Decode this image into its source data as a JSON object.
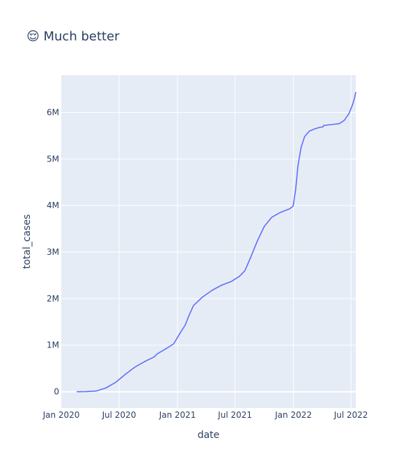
{
  "chart_data": {
    "type": "line",
    "title": "😌 Much better",
    "xlabel": "date",
    "ylabel": "total_cases",
    "grid": true,
    "legend": "none",
    "colors": {
      "background": "#ffffff",
      "plot_background": "#e5ecf6",
      "gridline": "#ffffff",
      "line": "#636efa",
      "text": "#2a3f5f"
    },
    "xlim": [
      "2020-01-01",
      "2022-07-16"
    ],
    "ylim": [
      -350000,
      6800000
    ],
    "x_ticks": [
      {
        "value": "2020-01-01",
        "label": "Jan 2020"
      },
      {
        "value": "2020-07-01",
        "label": "Jul 2020"
      },
      {
        "value": "2021-01-01",
        "label": "Jan 2021"
      },
      {
        "value": "2021-07-01",
        "label": "Jul 2021"
      },
      {
        "value": "2022-01-01",
        "label": "Jan 2022"
      },
      {
        "value": "2022-07-01",
        "label": "Jul 2022"
      }
    ],
    "y_ticks": [
      {
        "value": 0,
        "label": "0"
      },
      {
        "value": 1000000,
        "label": "1M"
      },
      {
        "value": 2000000,
        "label": "2M"
      },
      {
        "value": 3000000,
        "label": "3M"
      },
      {
        "value": 4000000,
        "label": "4M"
      },
      {
        "value": 5000000,
        "label": "5M"
      },
      {
        "value": 6000000,
        "label": "6M"
      }
    ],
    "series": [
      {
        "x": [
          "2020-02-20",
          "2020-03-20",
          "2020-04-20",
          "2020-05-20",
          "2020-06-20",
          "2020-07-20",
          "2020-08-20",
          "2020-09-20",
          "2020-10-20",
          "2020-10-28",
          "2020-11-25",
          "2020-12-20",
          "2021-01-10",
          "2021-01-25",
          "2021-02-05",
          "2021-02-20",
          "2021-03-20",
          "2021-04-20",
          "2021-05-20",
          "2021-06-20",
          "2021-07-01",
          "2021-07-15",
          "2021-08-01",
          "2021-08-20",
          "2021-09-10",
          "2021-10-01",
          "2021-10-25",
          "2021-11-20",
          "2021-12-20",
          "2021-12-31",
          "2022-01-08",
          "2022-01-15",
          "2022-01-25",
          "2022-02-05",
          "2022-02-20",
          "2022-03-10",
          "2022-03-25",
          "2022-04-04",
          "2022-04-06",
          "2022-05-01",
          "2022-05-25",
          "2022-06-10",
          "2022-06-25",
          "2022-07-05",
          "2022-07-12",
          "2022-07-16"
        ],
        "values": [
          0,
          3000,
          15000,
          80000,
          200000,
          370000,
          530000,
          650000,
          750000,
          810000,
          920000,
          1030000,
          1270000,
          1430000,
          1620000,
          1850000,
          2030000,
          2180000,
          2290000,
          2370000,
          2420000,
          2480000,
          2600000,
          2900000,
          3250000,
          3550000,
          3750000,
          3850000,
          3930000,
          3990000,
          4350000,
          4850000,
          5250000,
          5480000,
          5600000,
          5650000,
          5680000,
          5690000,
          5720000,
          5740000,
          5760000,
          5830000,
          5980000,
          6150000,
          6300000,
          6430000
        ]
      }
    ]
  }
}
